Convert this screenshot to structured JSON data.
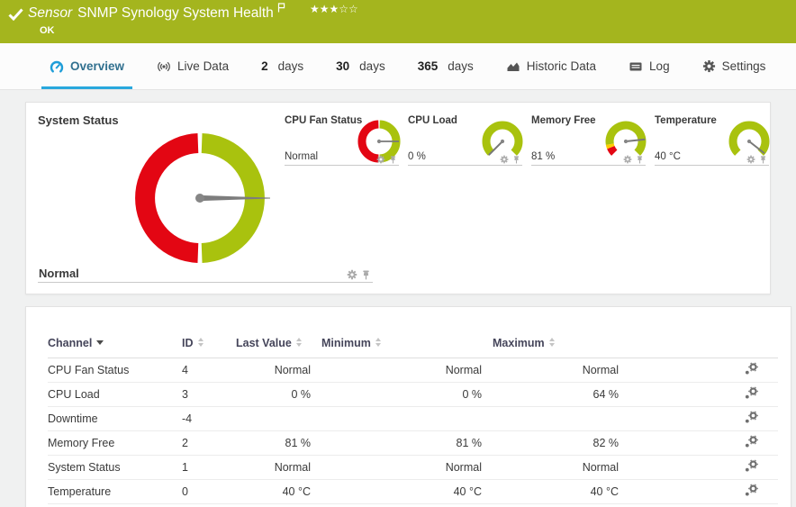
{
  "header": {
    "kind": "Sensor",
    "title": "SNMP Synology System Health",
    "status": "OK",
    "rating_filled": "★★★",
    "rating_empty": "☆☆"
  },
  "tabs": {
    "overview": "Overview",
    "live_data": "Live Data",
    "d2_num": "2",
    "d2_label": "days",
    "d30_num": "30",
    "d30_label": "days",
    "d365_num": "365",
    "d365_label": "days",
    "historic": "Historic Data",
    "log": "Log",
    "settings": "Settings"
  },
  "gauges": {
    "system_status": {
      "title": "System Status",
      "value": "Normal",
      "needle_deg": 0
    },
    "cpu_fan": {
      "title": "CPU Fan Status",
      "value": "Normal",
      "needle_deg": 0
    },
    "cpu_load": {
      "title": "CPU Load",
      "value": "0 %",
      "needle_deg": 135
    },
    "memory_free": {
      "title": "Memory Free",
      "value": "81 %",
      "needle_deg": 354
    },
    "temperature": {
      "title": "Temperature",
      "value": "40 °C",
      "needle_deg": 398
    }
  },
  "table": {
    "headers": {
      "channel": "Channel",
      "id": "ID",
      "last": "Last Value",
      "min": "Minimum",
      "max": "Maximum"
    },
    "rows": [
      {
        "channel": "CPU Fan Status",
        "id": "4",
        "last": "Normal",
        "min": "Normal",
        "max": "Normal"
      },
      {
        "channel": "CPU Load",
        "id": "3",
        "last": "0 %",
        "min": "0 %",
        "max": "64 %"
      },
      {
        "channel": "Downtime",
        "id": "-4",
        "last": "",
        "min": "",
        "max": ""
      },
      {
        "channel": "Memory Free",
        "id": "2",
        "last": "81 %",
        "min": "81 %",
        "max": "82 %"
      },
      {
        "channel": "System Status",
        "id": "1",
        "last": "Normal",
        "min": "Normal",
        "max": "Normal"
      },
      {
        "channel": "Temperature",
        "id": "0",
        "last": "40 °C",
        "min": "40 °C",
        "max": "40 °C"
      }
    ]
  },
  "colors": {
    "ok_green": "#a4b51e",
    "gauge_green": "#a9c20e",
    "gauge_red": "#e30613",
    "gauge_yellow": "#ffcc00",
    "accent_blue": "#29a8dd"
  }
}
